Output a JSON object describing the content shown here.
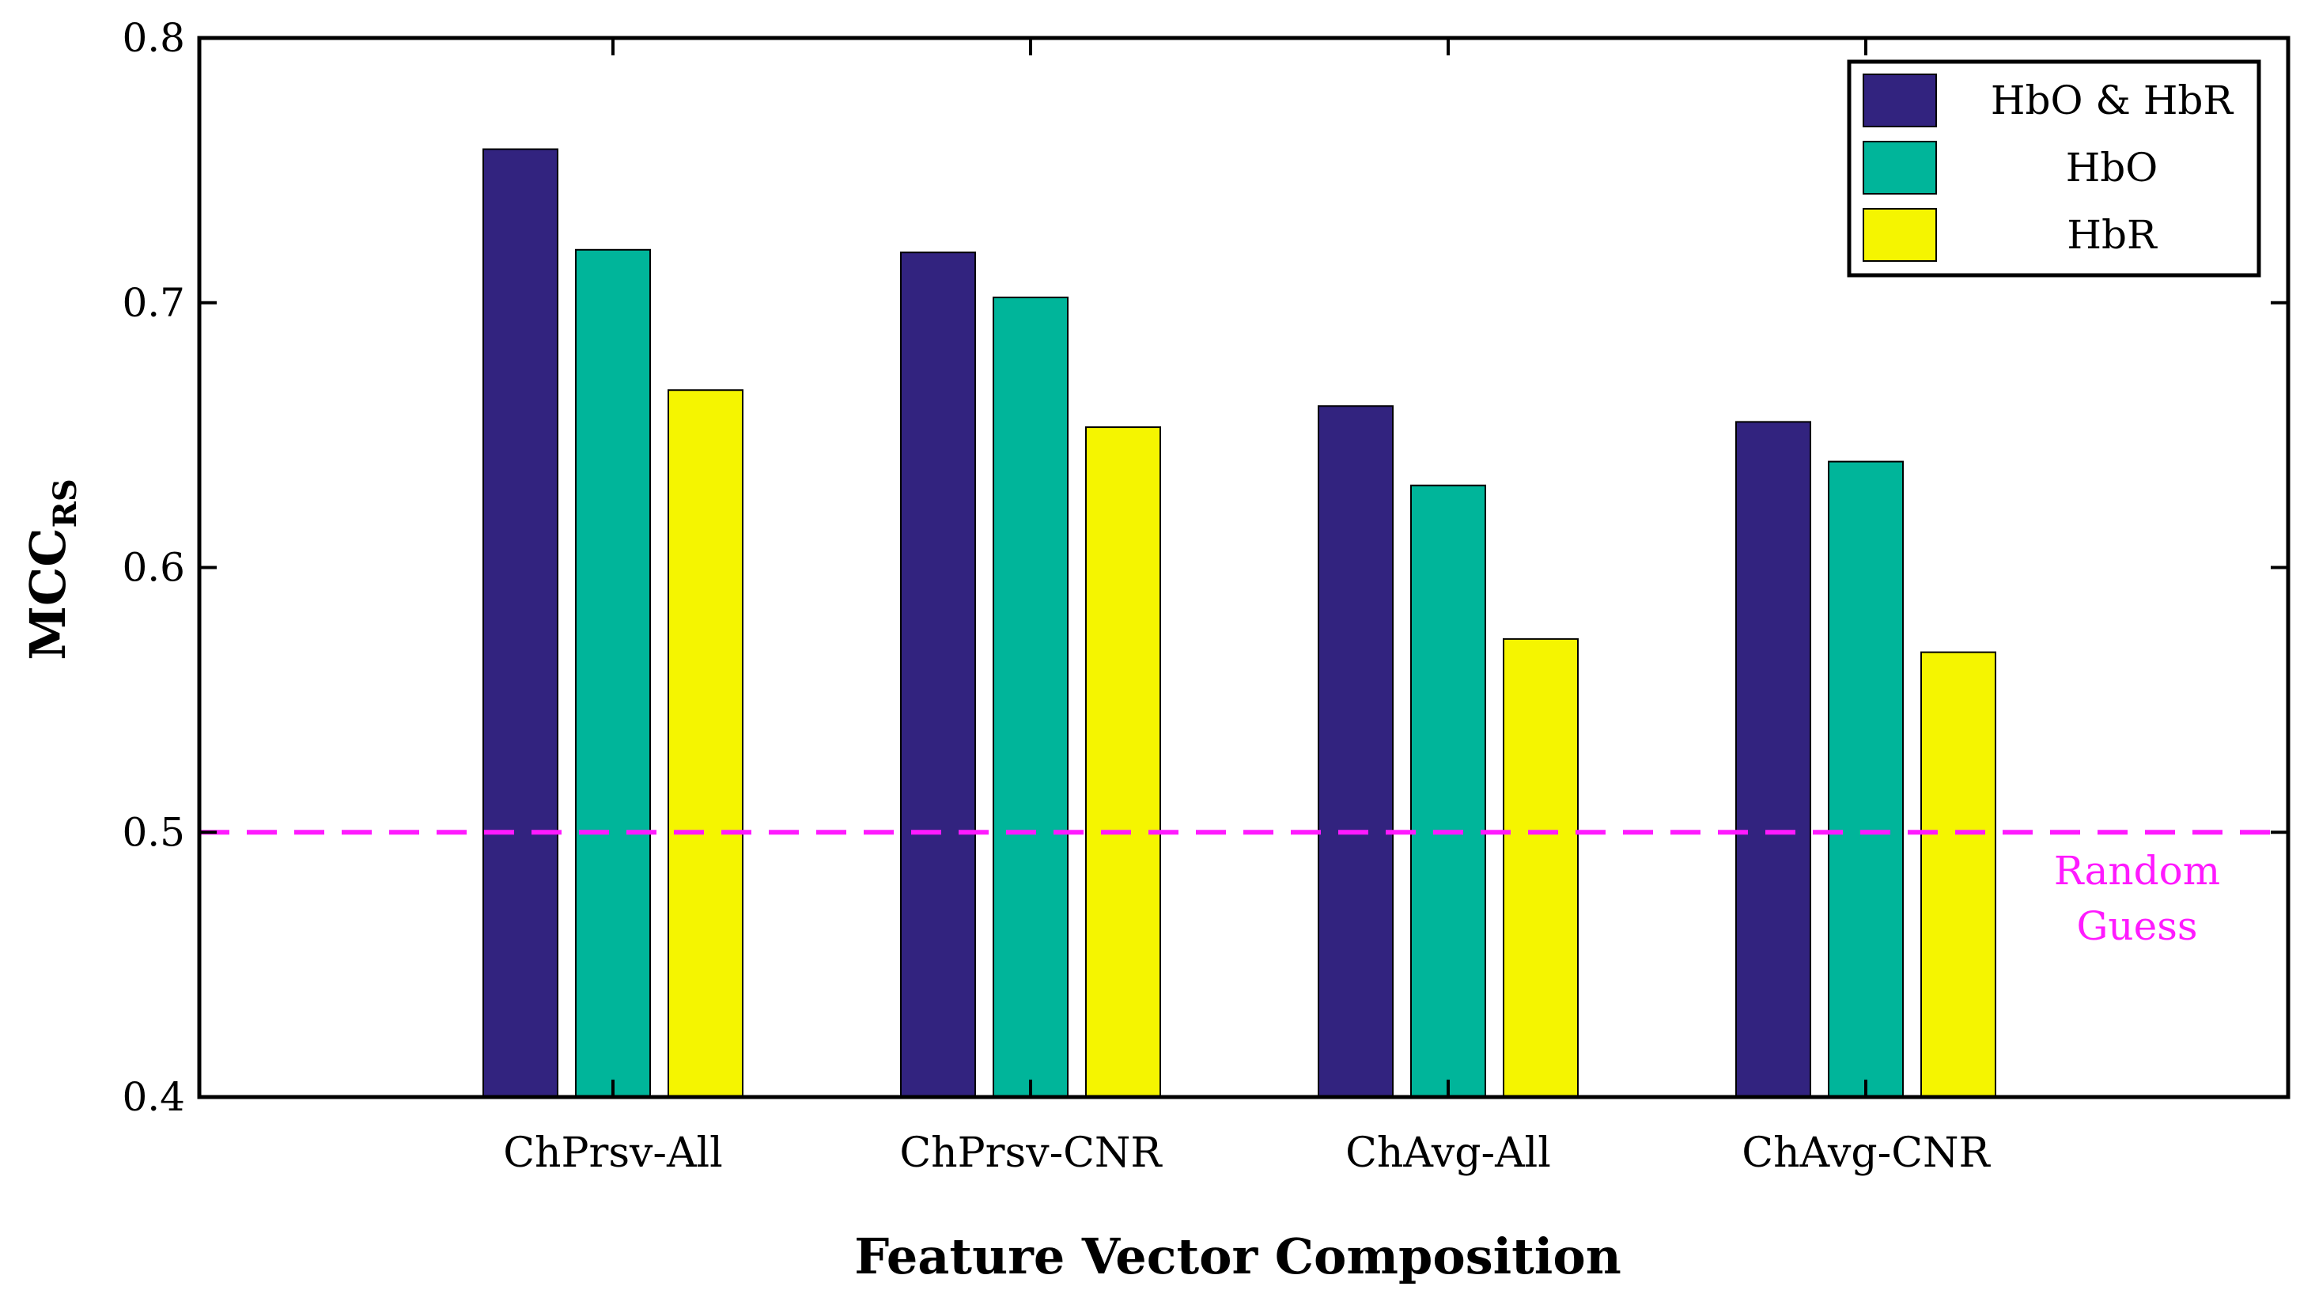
{
  "chart_data": {
    "type": "bar",
    "title": "",
    "xlabel": "Feature Vector Composition",
    "ylabel": "MCC",
    "ylabel_subscript": "RS",
    "ylim": [
      0.4,
      0.8
    ],
    "yticks": [
      "0.4",
      "0.5",
      "0.6",
      "0.7",
      "0.8"
    ],
    "categories": [
      "ChPrsv-All",
      "ChPrsv-CNR",
      "ChAvg-All",
      "ChAvg-CNR"
    ],
    "series": [
      {
        "name": "HbO & HbR",
        "color": "#32237f",
        "values": [
          0.758,
          0.719,
          0.661,
          0.655
        ]
      },
      {
        "name": "HbO",
        "color": "#00b59a",
        "values": [
          0.72,
          0.702,
          0.631,
          0.64
        ]
      },
      {
        "name": "HbR",
        "color": "#f5f500",
        "values": [
          0.667,
          0.653,
          0.573,
          0.568
        ]
      }
    ],
    "reference_line": {
      "value": 0.5,
      "color": "#ff1aff",
      "style": "dashed",
      "label_line1": "Random",
      "label_line2": "Guess"
    },
    "legend_position": "top-right",
    "grid": false
  }
}
